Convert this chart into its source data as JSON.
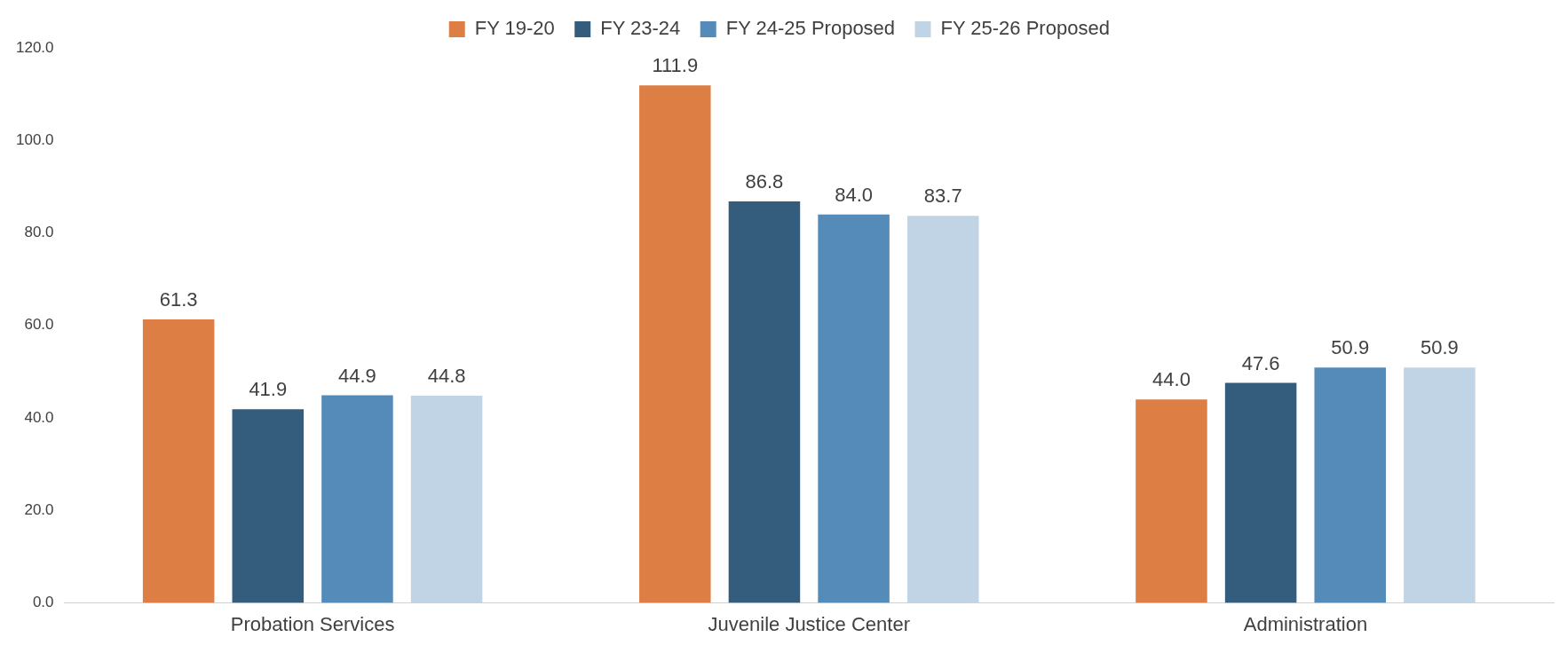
{
  "chart_data": {
    "type": "bar",
    "categories": [
      "Probation Services",
      "Juvenile Justice Center",
      "Administration"
    ],
    "series": [
      {
        "name": "FY 19-20",
        "color": "#dd7e45",
        "values": [
          61.3,
          111.9,
          44.0
        ],
        "value_labels": [
          "61.3",
          "111.9",
          "44.0"
        ]
      },
      {
        "name": "FY 23-24",
        "color": "#345c7c",
        "values": [
          41.9,
          86.8,
          47.6
        ],
        "value_labels": [
          "41.9",
          "86.8",
          "47.6"
        ]
      },
      {
        "name": "FY 24-25 Proposed",
        "color": "#548bb9",
        "values": [
          44.9,
          84.0,
          50.9
        ],
        "value_labels": [
          "44.9",
          "84.0",
          "50.9"
        ]
      },
      {
        "name": "FY 25-26 Proposed",
        "color": "#c0d4e5",
        "values": [
          44.8,
          83.7,
          50.9
        ],
        "value_labels": [
          "44.8",
          "83.7",
          "50.9"
        ]
      }
    ],
    "ylim": [
      0,
      120
    ],
    "yticks": [
      {
        "value": 0,
        "label": "0.0"
      },
      {
        "value": 20,
        "label": "20.0"
      },
      {
        "value": 40,
        "label": "40.0"
      },
      {
        "value": 60,
        "label": "60.0"
      },
      {
        "value": 80,
        "label": "80.0"
      },
      {
        "value": 100,
        "label": "100.0"
      },
      {
        "value": 120,
        "label": "120.0"
      }
    ],
    "grid": false,
    "legend": "top"
  }
}
